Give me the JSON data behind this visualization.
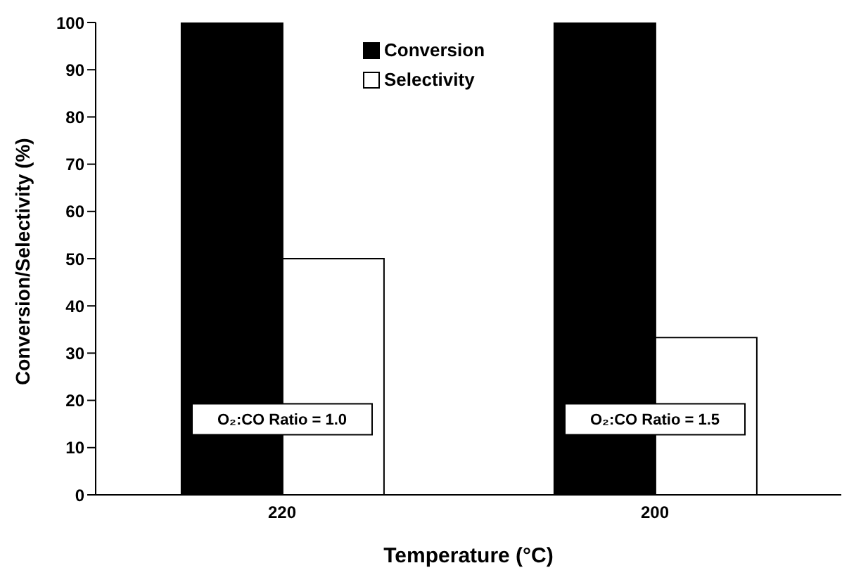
{
  "chart_data": {
    "type": "bar",
    "xlabel": "Temperature (°C)",
    "ylabel": "Conversion/Selectivity (%)",
    "categories": [
      "220",
      "200"
    ],
    "series": [
      {
        "name": "Conversion",
        "color": "#000000",
        "values": [
          100,
          100
        ]
      },
      {
        "name": "Selectivity",
        "color": "#ffffff",
        "values": [
          50,
          33.3
        ]
      }
    ],
    "ylim": [
      0,
      100
    ],
    "yticks": [
      0,
      10,
      20,
      30,
      40,
      50,
      60,
      70,
      80,
      90,
      100
    ],
    "grid": false,
    "legend": "top",
    "annotations": [
      {
        "text": "O₂:CO Ratio = 1.0",
        "x": "220",
        "y": 16
      },
      {
        "text": "O₂:CO Ratio = 1.5",
        "x": "200",
        "y": 16
      }
    ]
  }
}
